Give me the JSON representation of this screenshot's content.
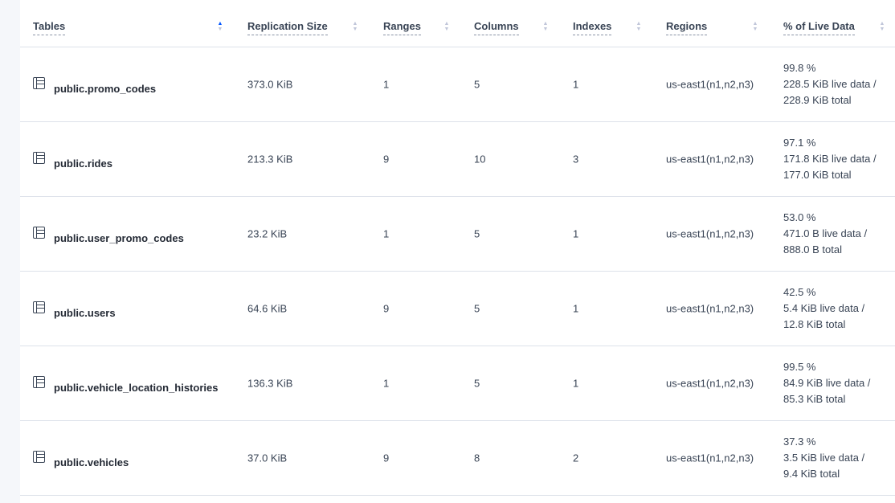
{
  "columns": [
    {
      "label": "Tables",
      "sort": "ascending"
    },
    {
      "label": "Replication Size",
      "sort": "none"
    },
    {
      "label": "Ranges",
      "sort": "none"
    },
    {
      "label": "Columns",
      "sort": "none"
    },
    {
      "label": "Indexes",
      "sort": "none"
    },
    {
      "label": "Regions",
      "sort": "none"
    },
    {
      "label": "% of Live Data",
      "sort": "none"
    }
  ],
  "rows": [
    {
      "name": "public.promo_codes",
      "size": "373.0 KiB",
      "ranges": "1",
      "columns": "5",
      "indexes": "1",
      "regions": "us-east1(n1,n2,n3)",
      "pct": "99.8 %",
      "live": "228.5 KiB live data /",
      "total": "228.9 KiB total"
    },
    {
      "name": "public.rides",
      "size": "213.3 KiB",
      "ranges": "9",
      "columns": "10",
      "indexes": "3",
      "regions": "us-east1(n1,n2,n3)",
      "pct": "97.1 %",
      "live": "171.8 KiB live data /",
      "total": "177.0 KiB total"
    },
    {
      "name": "public.user_promo_codes",
      "size": "23.2 KiB",
      "ranges": "1",
      "columns": "5",
      "indexes": "1",
      "regions": "us-east1(n1,n2,n3)",
      "pct": "53.0 %",
      "live": "471.0 B live data /",
      "total": "888.0 B total"
    },
    {
      "name": "public.users",
      "size": "64.6 KiB",
      "ranges": "9",
      "columns": "5",
      "indexes": "1",
      "regions": "us-east1(n1,n2,n3)",
      "pct": "42.5 %",
      "live": "5.4 KiB live data /",
      "total": "12.8 KiB total"
    },
    {
      "name": "public.vehicle_location_histories",
      "size": "136.3 KiB",
      "ranges": "1",
      "columns": "5",
      "indexes": "1",
      "regions": "us-east1(n1,n2,n3)",
      "pct": "99.5 %",
      "live": "84.9 KiB live data /",
      "total": "85.3 KiB total"
    },
    {
      "name": "public.vehicles",
      "size": "37.0 KiB",
      "ranges": "9",
      "columns": "8",
      "indexes": "2",
      "regions": "us-east1(n1,n2,n3)",
      "pct": "37.3 %",
      "live": "3.5 KiB live data /",
      "total": "9.4 KiB total"
    }
  ],
  "colors": {
    "accent": "#0055ff",
    "text": "#394455",
    "border": "#dde2ea"
  }
}
